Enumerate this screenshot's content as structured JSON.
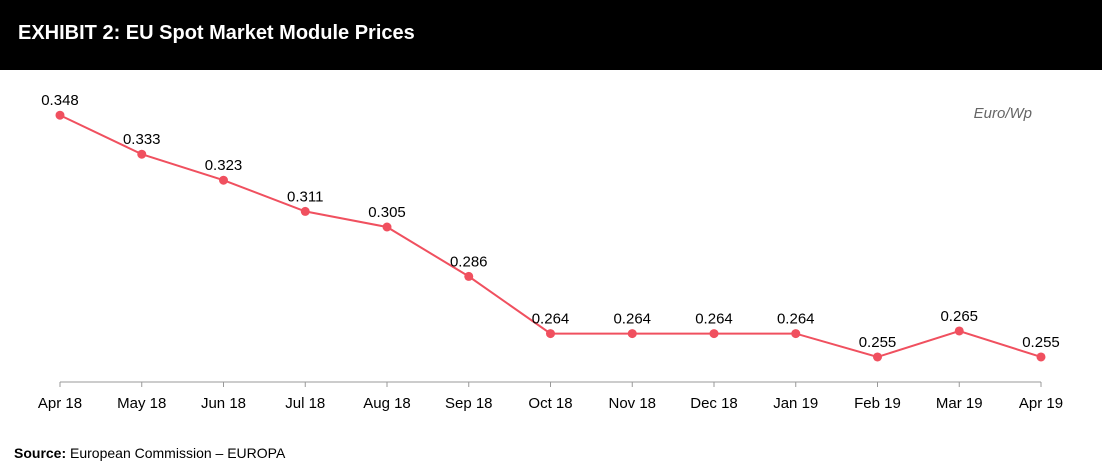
{
  "header": {
    "title": "EXHIBIT 2: EU Spot Market Module Prices"
  },
  "source": {
    "label": "Source:",
    "text": "European Commission – EUROPA"
  },
  "colors": {
    "line": "#F0505F",
    "header_bg": "#000000",
    "axis": "#999999"
  },
  "chart_data": {
    "type": "line",
    "unit_label": "Euro/Wp",
    "categories": [
      "Apr 18",
      "May 18",
      "Jun 18",
      "Jul 18",
      "Aug 18",
      "Sep 18",
      "Oct 18",
      "Nov 18",
      "Dec 18",
      "Jan 19",
      "Feb 19",
      "Mar 19",
      "Apr 19"
    ],
    "series": [
      {
        "values": [
          0.348,
          0.333,
          0.323,
          0.311,
          0.305,
          0.286,
          0.264,
          0.264,
          0.264,
          0.264,
          0.255,
          0.265,
          0.255
        ]
      }
    ],
    "data_labels": [
      "0.348",
      "0.333",
      "0.323",
      "0.311",
      "0.305",
      "0.286",
      "0.264",
      "0.264",
      "0.264",
      "0.264",
      "0.255",
      "0.265",
      "0.255"
    ],
    "grid": false,
    "legend": "none",
    "ylim": [
      0.2423,
      0.3577
    ]
  }
}
